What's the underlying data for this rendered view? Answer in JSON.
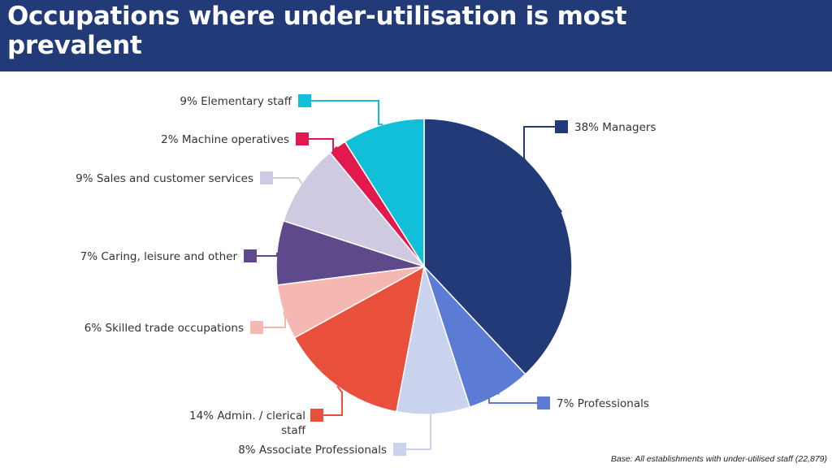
{
  "title": "Occupations where under-utilisation is most prevalent",
  "footnote": "Base: All establishments with under-utilised staff (22,879)",
  "chart_data": {
    "type": "pie",
    "slices": [
      {
        "label": "38% Managers",
        "value": 38,
        "color": "#233a79"
      },
      {
        "label": "7% Professionals",
        "value": 7,
        "color": "#5b7bd5"
      },
      {
        "label": "8% Associate Professionals",
        "value": 8,
        "color": "#c9d3ee"
      },
      {
        "label": "14% Admin. / clerical staff",
        "value": 14,
        "color": "#e8503c"
      },
      {
        "label": "6% Skilled trade occupations",
        "value": 6,
        "color": "#f5b7b1"
      },
      {
        "label": "7% Caring, leisure and other",
        "value": 7,
        "color": "#5e4a8b"
      },
      {
        "label": "9% Sales and customer services",
        "value": 9,
        "color": "#d0c9e2"
      },
      {
        "label": "2% Machine operatives",
        "value": 2,
        "color": "#e2184f"
      },
      {
        "label": "9% Elementary staff",
        "value": 9,
        "color": "#12bfd8"
      }
    ]
  }
}
